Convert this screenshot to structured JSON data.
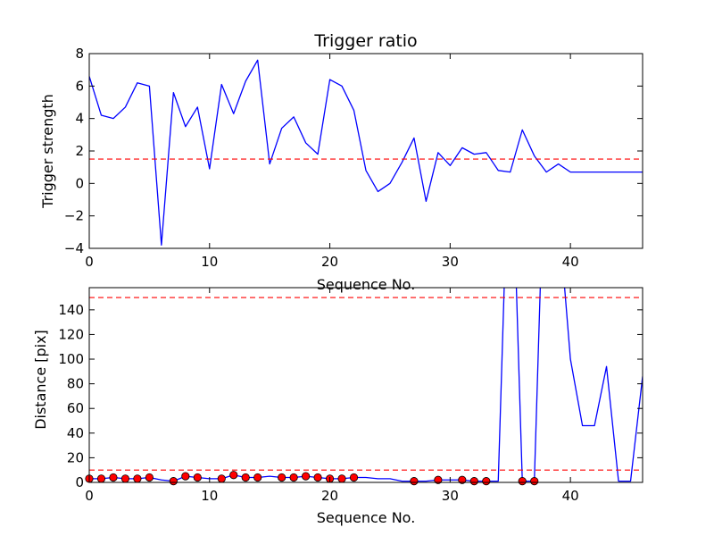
{
  "chart_data": [
    {
      "type": "line",
      "title": "Trigger ratio",
      "xlabel": "Sequence No.",
      "ylabel": "Trigger strength",
      "xlim": [
        0,
        46
      ],
      "ylim": [
        -4,
        8
      ],
      "xticks": [
        0,
        10,
        20,
        30,
        40
      ],
      "yticks": [
        -4,
        -2,
        0,
        2,
        4,
        6,
        8
      ],
      "grid": false,
      "line_color": "#0000ff",
      "threshold_color": "#ff0000",
      "series": [
        {
          "x": [
            0,
            1,
            2,
            3,
            4,
            5,
            6,
            7,
            8,
            9,
            10,
            11,
            12,
            13,
            14,
            15,
            16,
            17,
            18,
            19,
            20,
            21,
            22,
            23,
            24,
            25,
            26,
            27,
            28,
            29,
            30,
            31,
            32,
            33,
            34,
            35,
            36,
            37,
            38,
            39,
            40,
            46
          ],
          "values": [
            6.6,
            4.2,
            4.0,
            4.7,
            6.2,
            6.0,
            -3.8,
            5.6,
            3.5,
            4.7,
            0.9,
            6.1,
            4.3,
            6.3,
            7.6,
            1.2,
            3.4,
            4.1,
            2.5,
            1.8,
            6.4,
            6.0,
            4.5,
            0.8,
            -0.5,
            0.0,
            1.3,
            2.8,
            -1.1,
            1.9,
            1.1,
            2.2,
            1.8,
            1.9,
            0.8,
            0.7,
            3.3,
            1.7,
            0.7,
            1.2,
            0.7,
            0.7
          ]
        }
      ],
      "thresholds": [
        1.5
      ]
    },
    {
      "type": "line",
      "title": "",
      "xlabel": "Sequence No.",
      "ylabel": "Distance [pix]",
      "xlim": [
        0,
        46
      ],
      "ylim": [
        0,
        158
      ],
      "xticks": [
        0,
        10,
        20,
        30,
        40
      ],
      "yticks": [
        0,
        20,
        40,
        60,
        80,
        100,
        120,
        140
      ],
      "grid": false,
      "line_color": "#0000ff",
      "marker_color": "#ff0000",
      "threshold_color": "#ff0000",
      "series": [
        {
          "x": [
            0,
            1,
            2,
            3,
            4,
            5,
            6,
            7,
            8,
            9,
            10,
            11,
            12,
            13,
            14,
            15,
            16,
            17,
            18,
            19,
            20,
            21,
            22,
            23,
            24,
            25,
            26,
            27,
            28,
            29,
            30,
            31,
            32,
            33,
            34,
            34.5,
            35.5,
            36,
            37,
            37.5,
            39.5,
            40,
            41,
            42,
            43,
            44,
            45,
            46
          ],
          "values": [
            3,
            3,
            4,
            3,
            3,
            4,
            2,
            1,
            5,
            4,
            3,
            3,
            6,
            4,
            4,
            5,
            4,
            4,
            5,
            4,
            3,
            3,
            4,
            4,
            3,
            3,
            1,
            1,
            1,
            2,
            2,
            2,
            1,
            1,
            1,
            160,
            160,
            1,
            1,
            160,
            160,
            100,
            46,
            46,
            94,
            1,
            1,
            86
          ]
        }
      ],
      "markers": {
        "x": [
          0,
          1,
          2,
          3,
          4,
          5,
          7,
          8,
          9,
          11,
          12,
          13,
          14,
          16,
          17,
          18,
          19,
          20,
          21,
          22,
          27,
          29,
          31,
          32,
          33,
          36,
          37
        ],
        "values": [
          3,
          3,
          4,
          3,
          3,
          4,
          1,
          5,
          4,
          3,
          6,
          4,
          4,
          4,
          4,
          5,
          4,
          3,
          3,
          4,
          1,
          2,
          2,
          1,
          1,
          1,
          1
        ]
      },
      "thresholds": [
        10,
        150
      ]
    }
  ]
}
